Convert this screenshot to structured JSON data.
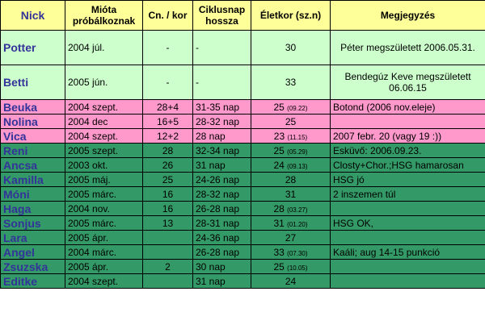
{
  "headers": {
    "nick": "Nick",
    "mioota": "Mióta próbálkoznak",
    "cn": "Cn. / kor",
    "ciklus": "Ciklusnap hossza",
    "eletkor": "Életkor (sz.n)",
    "megj": "Megjegyzés"
  },
  "colors": {
    "header": "#ffff99",
    "green": "#ccffcc",
    "pink": "#ff99cc",
    "dark_green": "#339966",
    "nick_text": "#333399"
  },
  "rows": [
    {
      "nick": "Potter",
      "since": "2004 júl.",
      "cn": "-",
      "cycle": "-",
      "age": "30",
      "birth": "",
      "note": "Péter megszületett 2006.05.31."
    },
    {
      "nick": "Betti",
      "since": "2005 jún.",
      "cn": "-",
      "cycle": "-",
      "age": "33",
      "birth": "",
      "note": "Bendegúz Keve megszületett 06.06.15"
    },
    {
      "nick": "Beuka",
      "since": "2004 szept.",
      "cn": "28+4",
      "cycle": "31-35 nap",
      "age": "25",
      "birth": "(09.22)",
      "note": "Botond (2006 nov.eleje)"
    },
    {
      "nick": "Nolina",
      "since": "2004 dec",
      "cn": "16+5",
      "cycle": "28-32 nap",
      "age": "25",
      "birth": "",
      "note": ""
    },
    {
      "nick": "Vica",
      "since": "2004 szept.",
      "cn": "12+2",
      "cycle": "28 nap",
      "age": "23",
      "birth": "(11.15)",
      "note": "2007 febr. 20 (vagy 19 :))"
    },
    {
      "nick": "Reni",
      "since": "2005 szept.",
      "cn": "28",
      "cycle": "32-34 nap",
      "age": "25",
      "birth": "(05.29)",
      "note": "Esküvő: 2006.09.23."
    },
    {
      "nick": "Ancsa",
      "since": "2003 okt.",
      "cn": "26",
      "cycle": "31 nap",
      "age": "24",
      "birth": "(09.13)",
      "note": "Closty+Chor.;HSG hamarosan"
    },
    {
      "nick": "Kamilla",
      "since": "2005 máj.",
      "cn": "25",
      "cycle": "24-26 nap",
      "age": "28",
      "birth": "",
      "note": "HSG jó"
    },
    {
      "nick": "Móni",
      "since": "2005 márc.",
      "cn": "16",
      "cycle": "28-32 nap",
      "age": "31",
      "birth": "",
      "note": "2 inszemen túl"
    },
    {
      "nick": "Haga",
      "since": "2004 nov.",
      "cn": "16",
      "cycle": "26-28 nap",
      "age": "28",
      "birth": "(03.27)",
      "note": ""
    },
    {
      "nick": "Sonjus",
      "since": "2005 márc.",
      "cn": "13",
      "cycle": "28-31 nap",
      "age": "31",
      "birth": "(01.20)",
      "note": "HSG OK,"
    },
    {
      "nick": "Lara",
      "since": "2005 ápr.",
      "cn": "",
      "cycle": "24-36 nap",
      "age": "27",
      "birth": "",
      "note": ""
    },
    {
      "nick": "Angel",
      "since": "2004 márc.",
      "cn": "",
      "cycle": "26-28 nap",
      "age": "33",
      "birth": "(07.30)",
      "note": "Kaáli; aug 14-15 punkció"
    },
    {
      "nick": "Zsuzska",
      "since": "2005 ápr.",
      "cn": "2",
      "cycle": "30 nap",
      "age": "25",
      "birth": "(10.05)",
      "note": ""
    },
    {
      "nick": "Editke",
      "since": "2004 szept.",
      "cn": "",
      "cycle": "31 nap",
      "age": "24",
      "birth": "",
      "note": ""
    }
  ]
}
